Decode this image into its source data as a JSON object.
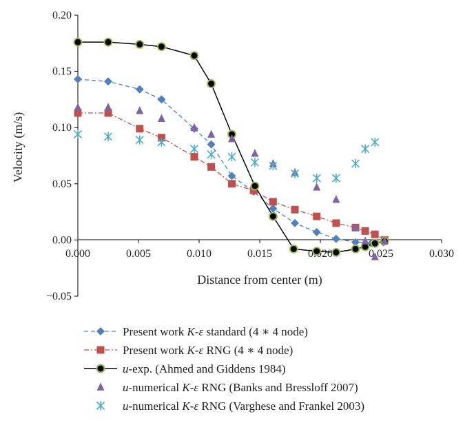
{
  "chart_data": {
    "type": "line",
    "title": "",
    "xlabel": "Distance from center (m)",
    "ylabel": "Velocity (m/s)",
    "xlim": [
      0,
      0.03
    ],
    "ylim": [
      -0.05,
      0.2
    ],
    "x_ticks": [
      "0.000",
      "0.005",
      "0.010",
      "0.015",
      "0.020",
      "0.025",
      "0.030"
    ],
    "y_ticks": [
      "0.20",
      "0.15",
      "0.10",
      "0.05",
      "0.00",
      "−0.05"
    ],
    "grid": false,
    "legend_position": "bottom",
    "series": [
      {
        "name": "Present work K-ε standard (4 ∗ 4 node)",
        "legend_parts": [
          [
            "Present work ",
            ""
          ],
          [
            "K",
            "i"
          ],
          [
            "-",
            ""
          ],
          [
            "ε",
            "i"
          ],
          [
            " standard (4 ∗ 4 node)",
            ""
          ]
        ],
        "color": "#4f81bd",
        "marker": "diamond",
        "line": "dashed",
        "x": [
          0.0,
          0.0025,
          0.0051,
          0.0069,
          0.0096,
          0.011,
          0.0127,
          0.0145,
          0.0161,
          0.0179,
          0.0197,
          0.0213,
          0.0229,
          0.0242,
          0.0252
        ],
        "y": [
          0.143,
          0.141,
          0.134,
          0.125,
          0.099,
          0.085,
          0.057,
          0.043,
          0.028,
          0.015,
          0.007,
          0.001,
          -0.002,
          -0.003,
          -0.002
        ]
      },
      {
        "name": "Present work K-ε RNG (4 ∗ 4 node)",
        "legend_parts": [
          [
            "Present work ",
            ""
          ],
          [
            "K",
            "i"
          ],
          [
            "-",
            ""
          ],
          [
            "ε",
            "i"
          ],
          [
            " RNG (4 ∗ 4 node)",
            ""
          ]
        ],
        "color": "#c0504d",
        "marker": "square",
        "line": "dashdot",
        "x": [
          0.0,
          0.0025,
          0.0051,
          0.0069,
          0.0096,
          0.011,
          0.0127,
          0.0145,
          0.0161,
          0.0179,
          0.0197,
          0.0213,
          0.0229,
          0.0237,
          0.0245,
          0.0253
        ],
        "y": [
          0.113,
          0.113,
          0.099,
          0.091,
          0.074,
          0.065,
          0.05,
          0.044,
          0.034,
          0.027,
          0.021,
          0.015,
          0.011,
          0.008,
          0.005,
          0.0
        ]
      },
      {
        "name": "u-exp. (Ahmed and Giddens 1984)",
        "legend_parts": [
          [
            "u",
            "i"
          ],
          [
            "-exp. (Ahmed and Giddens 1984)",
            ""
          ]
        ],
        "color": "#000000",
        "marker_fill": "#9bbb59",
        "marker": "circle",
        "line": "solid",
        "x": [
          0.0,
          0.0025,
          0.0051,
          0.0069,
          0.0096,
          0.011,
          0.0127,
          0.0146,
          0.0161,
          0.0178,
          0.0197,
          0.0213,
          0.0229,
          0.0237,
          0.0245,
          0.0253
        ],
        "y": [
          0.176,
          0.176,
          0.174,
          0.172,
          0.164,
          0.139,
          0.094,
          0.048,
          0.021,
          -0.008,
          -0.01,
          -0.011,
          -0.008,
          -0.006,
          -0.003,
          -0.001
        ]
      },
      {
        "name": "u-numerical K-ε RNG (Banks and Bressloff 2007)",
        "legend_parts": [
          [
            "u",
            "i"
          ],
          [
            "-numerical ",
            ""
          ],
          [
            "K",
            "i"
          ],
          [
            "-",
            ""
          ],
          [
            "ε",
            "i"
          ],
          [
            " RNG (Banks and Bressloff 2007)",
            ""
          ]
        ],
        "color": "#8064a2",
        "marker": "triangle",
        "line": "none",
        "x": [
          0.0,
          0.0025,
          0.0051,
          0.0069,
          0.0096,
          0.011,
          0.0127,
          0.0146,
          0.0161,
          0.0179,
          0.0197,
          0.0213,
          0.0229,
          0.0237,
          0.0245,
          0.0253
        ],
        "y": [
          0.118,
          0.118,
          0.115,
          0.108,
          0.1,
          0.094,
          0.09,
          0.077,
          0.068,
          0.06,
          0.047,
          0.036,
          0.011,
          -0.001,
          -0.015,
          -0.001
        ]
      },
      {
        "name": "u-numerical K-ε RNG (Varghese and Frankel 2003)",
        "legend_parts": [
          [
            "u",
            "i"
          ],
          [
            "-numerical ",
            ""
          ],
          [
            "K",
            "i"
          ],
          [
            "-",
            ""
          ],
          [
            "ε",
            "i"
          ],
          [
            " RNG (Varghese and Frankel 2003)",
            ""
          ]
        ],
        "color": "#4bacc6",
        "marker": "star",
        "line": "none",
        "x": [
          0.0,
          0.0025,
          0.0051,
          0.0069,
          0.0096,
          0.011,
          0.0127,
          0.0146,
          0.0161,
          0.0179,
          0.0197,
          0.0213,
          0.0229,
          0.0237,
          0.0245
        ],
        "y": [
          0.094,
          0.092,
          0.089,
          0.087,
          0.081,
          0.076,
          0.074,
          0.069,
          0.066,
          0.059,
          0.055,
          0.055,
          0.068,
          0.081,
          0.087
        ]
      }
    ]
  }
}
